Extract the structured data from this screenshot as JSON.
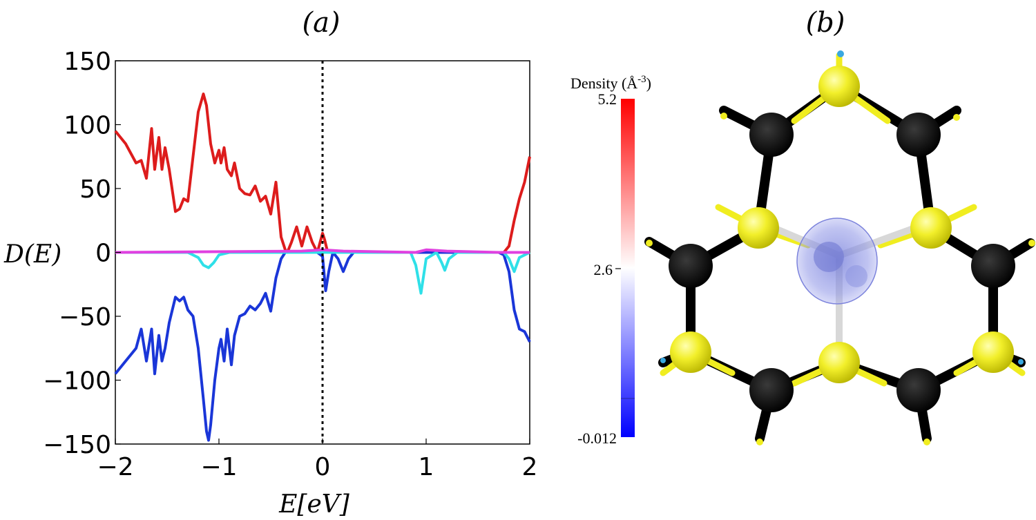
{
  "panel_a": {
    "label": "(a)"
  },
  "panel_b": {
    "label": "(b)"
  },
  "chart_data": {
    "type": "line",
    "xlabel": "E[eV]",
    "ylabel": "D(E)",
    "xlim": [
      -2,
      2
    ],
    "ylim": [
      -150,
      150
    ],
    "xticks": [
      -2,
      -1,
      0,
      1,
      2
    ],
    "yticks": [
      150,
      100,
      50,
      0,
      -50,
      -100,
      -150
    ],
    "xtick_labels": [
      "−2",
      "−1",
      "0",
      "1",
      "2"
    ],
    "ytick_labels": [
      "150",
      "100",
      "50",
      "0",
      "−50",
      "−100",
      "−150"
    ],
    "fermi_level": 0,
    "grid": false,
    "series": [
      {
        "color": "#dd1c1c",
        "x": [
          -2.0,
          -1.9,
          -1.8,
          -1.75,
          -1.7,
          -1.65,
          -1.62,
          -1.58,
          -1.55,
          -1.52,
          -1.48,
          -1.42,
          -1.38,
          -1.34,
          -1.3,
          -1.25,
          -1.2,
          -1.15,
          -1.12,
          -1.08,
          -1.04,
          -1.0,
          -0.98,
          -0.95,
          -0.92,
          -0.88,
          -0.85,
          -0.8,
          -0.75,
          -0.7,
          -0.65,
          -0.6,
          -0.55,
          -0.5,
          -0.45,
          -0.4,
          -0.36,
          -0.34,
          -0.3,
          -0.25,
          -0.2,
          -0.15,
          -0.1,
          -0.05,
          0.0,
          0.02,
          0.05,
          0.1,
          1.6,
          1.7,
          1.75,
          1.8,
          1.85,
          1.9,
          1.95,
          2.0
        ],
        "y": [
          95,
          85,
          70,
          72,
          58,
          97,
          65,
          90,
          65,
          82,
          65,
          32,
          34,
          42,
          40,
          75,
          110,
          124,
          115,
          85,
          70,
          80,
          70,
          82,
          65,
          60,
          70,
          50,
          46,
          45,
          52,
          40,
          44,
          30,
          55,
          12,
          2,
          0,
          8,
          20,
          5,
          20,
          8,
          0,
          15,
          10,
          0,
          0,
          0,
          0,
          0,
          5,
          25,
          42,
          55,
          75
        ]
      },
      {
        "color": "#1a36d8",
        "x": [
          -2.0,
          -1.9,
          -1.8,
          -1.75,
          -1.7,
          -1.65,
          -1.62,
          -1.58,
          -1.55,
          -1.52,
          -1.48,
          -1.42,
          -1.38,
          -1.34,
          -1.3,
          -1.25,
          -1.2,
          -1.15,
          -1.12,
          -1.1,
          -1.08,
          -1.04,
          -1.0,
          -0.98,
          -0.95,
          -0.92,
          -0.88,
          -0.85,
          -0.8,
          -0.75,
          -0.7,
          -0.65,
          -0.6,
          -0.55,
          -0.5,
          -0.45,
          -0.4,
          -0.36,
          -0.34,
          -0.3,
          -0.25,
          -0.2,
          -0.15,
          -0.1,
          -0.05,
          0.0,
          0.03,
          0.06,
          0.1,
          0.15,
          0.2,
          0.25,
          0.3,
          1.7,
          1.75,
          1.8,
          1.85,
          1.9,
          1.95,
          2.0
        ],
        "y": [
          -95,
          -85,
          -75,
          -60,
          -85,
          -60,
          -95,
          -65,
          -85,
          -75,
          -55,
          -35,
          -38,
          -35,
          -45,
          -50,
          -75,
          -115,
          -140,
          -147,
          -135,
          -100,
          -75,
          -68,
          -85,
          -60,
          -88,
          -65,
          -50,
          -48,
          -42,
          -45,
          -40,
          -32,
          -46,
          -20,
          -5,
          0,
          0,
          0,
          0,
          0,
          0,
          0,
          0,
          -3,
          -30,
          -15,
          0,
          -5,
          -15,
          -5,
          0,
          0,
          -2,
          -15,
          -45,
          -60,
          -62,
          -70
        ]
      },
      {
        "color": "#2fe0e8",
        "x": [
          -2.0,
          -1.3,
          -1.2,
          -1.15,
          -1.1,
          -1.05,
          -1.0,
          -0.9,
          0.85,
          0.9,
          0.95,
          1.0,
          1.1,
          1.15,
          1.18,
          1.22,
          1.3,
          1.75,
          1.8,
          1.85,
          1.9,
          2.0
        ],
        "y": [
          0,
          0,
          -4,
          -10,
          -12,
          -8,
          -2,
          0,
          0,
          -10,
          -32,
          -5,
          0,
          -8,
          -14,
          -5,
          0,
          0,
          -5,
          -15,
          -4,
          0
        ]
      },
      {
        "color": "#e040e0",
        "x": [
          -2.0,
          -0.2,
          0.0,
          0.2,
          0.9,
          1.0,
          1.2,
          1.7,
          2.0
        ],
        "y": [
          0,
          1,
          2,
          1,
          0,
          2,
          1,
          0,
          0
        ]
      }
    ]
  },
  "colorbar": {
    "title": "Density (Å",
    "exponent": "-3",
    "title_close": ")",
    "max_label": "5.2",
    "mid_label": "2.6",
    "min_label": "-0.012",
    "colors": [
      "#ff0000",
      "#ffffff",
      "#0000ff"
    ]
  }
}
